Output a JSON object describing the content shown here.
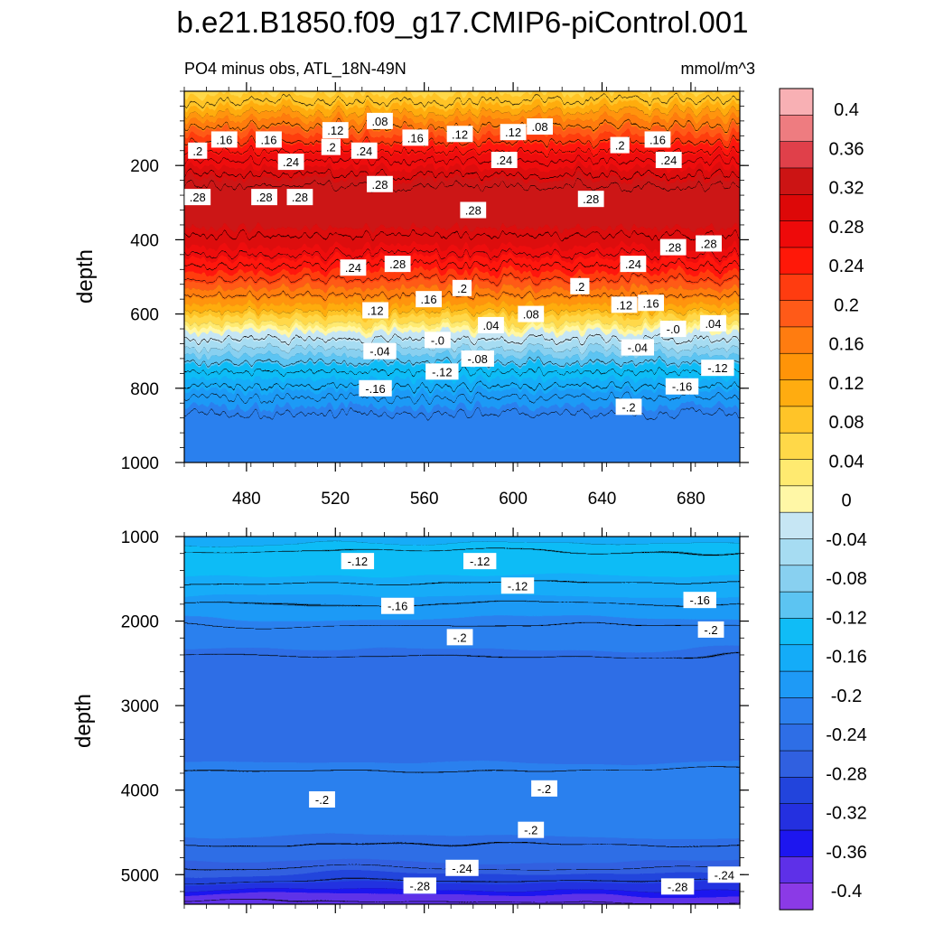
{
  "chart_data": {
    "type": "heatmap",
    "title": "b.e21.B1850.f09_g17.CMIP6-piControl.001",
    "subtitle_left": "PO4 minus obs, ATL_18N-49N",
    "units": "mmol/m^3",
    "ylabel": "depth",
    "colorbar": {
      "levels": [
        -0.4,
        -0.36,
        -0.32,
        -0.28,
        -0.24,
        -0.2,
        -0.16,
        -0.12,
        -0.08,
        -0.04,
        0,
        0.04,
        0.08,
        0.12,
        0.16,
        0.2,
        0.24,
        0.28,
        0.32,
        0.36,
        0.4
      ],
      "tick_labels": [
        "-0.4",
        "-0.36",
        "-0.32",
        "-0.28",
        "-0.24",
        "-0.2",
        "-0.16",
        "-0.12",
        "-0.08",
        "-0.04",
        "0",
        "0.04",
        "0.08",
        "0.12",
        "0.16",
        "0.2",
        "0.24",
        "0.28",
        "0.32",
        "0.36",
        "0.4"
      ],
      "colors": [
        "#8b3ae6",
        "#5e30e8",
        "#1d16ef",
        "#2430e0",
        "#2244dc",
        "#3060e0",
        "#2e6ee6",
        "#2c80ee",
        "#1e9af6",
        "#14acf8",
        "#10bcf6",
        "#5cc4f2",
        "#88d0f0",
        "#a6dcf2",
        "#c6e6f4",
        "#fff7a6",
        "#ffea70",
        "#ffd848",
        "#ffc428",
        "#ffac10",
        "#ff9408",
        "#ff7c10",
        "#ff5a18",
        "#ff3c10",
        "#ff1808",
        "#ee0a0a",
        "#dd0808",
        "#cc1414",
        "#e0404a",
        "#ee7c80",
        "#f8b0b4"
      ]
    },
    "panels": [
      {
        "name": "upper",
        "ylim": [
          1000,
          0
        ],
        "xlim": [
          452,
          702
        ],
        "x_ticks": [
          480,
          520,
          560,
          600,
          640,
          680
        ],
        "y_ticks": [
          200,
          400,
          600,
          800,
          1000
        ],
        "depth_profile": [
          [
            20,
            0.06
          ],
          [
            60,
            0.1
          ],
          [
            100,
            0.15
          ],
          [
            140,
            0.2
          ],
          [
            180,
            0.24
          ],
          [
            220,
            0.27
          ],
          [
            260,
            0.3
          ],
          [
            300,
            0.31
          ],
          [
            340,
            0.31
          ],
          [
            380,
            0.3
          ],
          [
            420,
            0.28
          ],
          [
            460,
            0.25
          ],
          [
            500,
            0.22
          ],
          [
            540,
            0.18
          ],
          [
            580,
            0.13
          ],
          [
            620,
            0.07
          ],
          [
            650,
            0.02
          ],
          [
            665,
            -0.01
          ],
          [
            690,
            -0.04
          ],
          [
            720,
            -0.08
          ],
          [
            760,
            -0.12
          ],
          [
            800,
            -0.15
          ],
          [
            840,
            -0.18
          ],
          [
            880,
            -0.2
          ],
          [
            940,
            -0.21
          ],
          [
            1000,
            -0.21
          ]
        ],
        "contour_labels": [
          {
            "x": 458,
            "y": 160,
            "text": ".2"
          },
          {
            "x": 470,
            "y": 130,
            "text": ".16"
          },
          {
            "x": 490,
            "y": 130,
            "text": ".16"
          },
          {
            "x": 520,
            "y": 105,
            "text": ".12"
          },
          {
            "x": 540,
            "y": 80,
            "text": ".08"
          },
          {
            "x": 518,
            "y": 150,
            "text": ".2"
          },
          {
            "x": 533,
            "y": 160,
            "text": ".24"
          },
          {
            "x": 500,
            "y": 190,
            "text": ".24"
          },
          {
            "x": 556,
            "y": 125,
            "text": ".16"
          },
          {
            "x": 576,
            "y": 115,
            "text": ".12"
          },
          {
            "x": 600,
            "y": 110,
            "text": ".12"
          },
          {
            "x": 612,
            "y": 95,
            "text": ".08"
          },
          {
            "x": 648,
            "y": 145,
            "text": ".2"
          },
          {
            "x": 665,
            "y": 130,
            "text": ".16"
          },
          {
            "x": 596,
            "y": 185,
            "text": ".24"
          },
          {
            "x": 670,
            "y": 185,
            "text": ".24"
          },
          {
            "x": 458,
            "y": 285,
            "text": ".28"
          },
          {
            "x": 488,
            "y": 285,
            "text": ".28"
          },
          {
            "x": 504,
            "y": 285,
            "text": ".28"
          },
          {
            "x": 540,
            "y": 250,
            "text": ".28"
          },
          {
            "x": 582,
            "y": 320,
            "text": ".28"
          },
          {
            "x": 635,
            "y": 290,
            "text": ".28"
          },
          {
            "x": 672,
            "y": 420,
            "text": ".28"
          },
          {
            "x": 688,
            "y": 410,
            "text": ".28"
          },
          {
            "x": 528,
            "y": 475,
            "text": ".24"
          },
          {
            "x": 548,
            "y": 465,
            "text": ".28"
          },
          {
            "x": 577,
            "y": 530,
            "text": ".2"
          },
          {
            "x": 630,
            "y": 525,
            "text": ".2"
          },
          {
            "x": 654,
            "y": 465,
            "text": ".24"
          },
          {
            "x": 562,
            "y": 560,
            "text": ".16"
          },
          {
            "x": 538,
            "y": 590,
            "text": ".12"
          },
          {
            "x": 662,
            "y": 570,
            "text": ".16"
          },
          {
            "x": 650,
            "y": 575,
            "text": ".12"
          },
          {
            "x": 608,
            "y": 600,
            "text": ".08"
          },
          {
            "x": 590,
            "y": 630,
            "text": ".04"
          },
          {
            "x": 690,
            "y": 625,
            "text": ".04"
          },
          {
            "x": 566,
            "y": 670,
            "text": "-.0"
          },
          {
            "x": 672,
            "y": 640,
            "text": "-.0"
          },
          {
            "x": 540,
            "y": 700,
            "text": "-.04"
          },
          {
            "x": 656,
            "y": 690,
            "text": "-.04"
          },
          {
            "x": 584,
            "y": 720,
            "text": "-.08"
          },
          {
            "x": 568,
            "y": 755,
            "text": "-.12"
          },
          {
            "x": 692,
            "y": 745,
            "text": "-.12"
          },
          {
            "x": 538,
            "y": 800,
            "text": "-.16"
          },
          {
            "x": 676,
            "y": 795,
            "text": "-.16"
          },
          {
            "x": 652,
            "y": 850,
            "text": "-.2"
          }
        ]
      },
      {
        "name": "lower",
        "ylim": [
          5350,
          1000
        ],
        "xlim": [
          452,
          702
        ],
        "x_ticks": [
          480,
          520,
          560,
          600,
          640,
          680
        ],
        "y_ticks": [
          1000,
          2000,
          3000,
          4000,
          5000
        ],
        "depth_profile": [
          [
            1000,
            -0.2
          ],
          [
            1100,
            -0.15
          ],
          [
            1300,
            -0.12
          ],
          [
            1500,
            -0.14
          ],
          [
            1800,
            -0.17
          ],
          [
            2100,
            -0.2
          ],
          [
            2400,
            -0.22
          ],
          [
            3000,
            -0.24
          ],
          [
            3500,
            -0.23
          ],
          [
            4000,
            -0.21
          ],
          [
            4500,
            -0.21
          ],
          [
            4800,
            -0.23
          ],
          [
            5000,
            -0.26
          ],
          [
            5200,
            -0.3
          ],
          [
            5350,
            -0.36
          ]
        ],
        "contour_labels": [
          {
            "x": 530,
            "y": 1290,
            "text": "-.12"
          },
          {
            "x": 585,
            "y": 1290,
            "text": "-.12"
          },
          {
            "x": 602,
            "y": 1580,
            "text": "-.12"
          },
          {
            "x": 548,
            "y": 1820,
            "text": "-.16"
          },
          {
            "x": 684,
            "y": 1750,
            "text": "-.16"
          },
          {
            "x": 576,
            "y": 2190,
            "text": "-.2"
          },
          {
            "x": 689,
            "y": 2100,
            "text": "-.2"
          },
          {
            "x": 514,
            "y": 4110,
            "text": "-.2"
          },
          {
            "x": 614,
            "y": 3980,
            "text": "-.2"
          },
          {
            "x": 608,
            "y": 4470,
            "text": "-.2"
          },
          {
            "x": 577,
            "y": 4920,
            "text": "-.24"
          },
          {
            "x": 695,
            "y": 5000,
            "text": "-.24"
          },
          {
            "x": 558,
            "y": 5130,
            "text": "-.28"
          },
          {
            "x": 674,
            "y": 5140,
            "text": "-.28"
          }
        ]
      }
    ]
  }
}
